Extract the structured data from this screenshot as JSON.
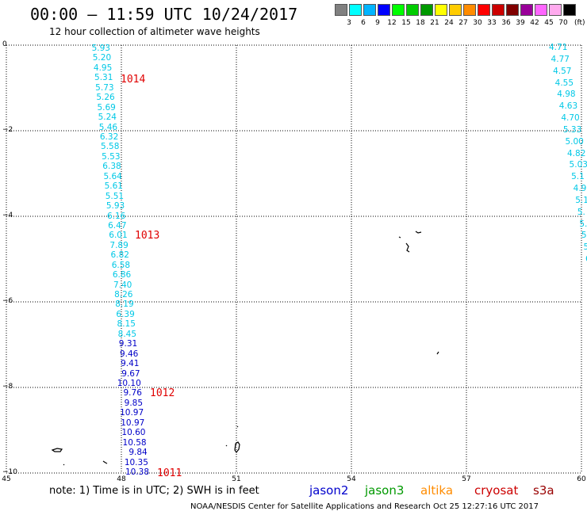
{
  "header": {
    "title": "00:00 – 11:59 UTC 10/24/2017",
    "subtitle": "12 hour collection of altimeter wave heights"
  },
  "legend": {
    "unit": "(ft)",
    "items": [
      {
        "label": "3",
        "color": "#808080"
      },
      {
        "label": "6",
        "color": "#00ffff"
      },
      {
        "label": "9",
        "color": "#00b4ff"
      },
      {
        "label": "12",
        "color": "#0000ff"
      },
      {
        "label": "15",
        "color": "#00ff00"
      },
      {
        "label": "18",
        "color": "#00cc00"
      },
      {
        "label": "21",
        "color": "#009900"
      },
      {
        "label": "24",
        "color": "#ffff00"
      },
      {
        "label": "27",
        "color": "#ffcc00"
      },
      {
        "label": "30",
        "color": "#ff8c00"
      },
      {
        "label": "33",
        "color": "#ff0000"
      },
      {
        "label": "36",
        "color": "#cc0000"
      },
      {
        "label": "39",
        "color": "#800000"
      },
      {
        "label": "42",
        "color": "#990099"
      },
      {
        "label": "45",
        "color": "#ff66ff"
      },
      {
        "label": "70",
        "color": "#ffaaee"
      },
      {
        "label": "",
        "color": "#000000"
      }
    ]
  },
  "axes": {
    "y_ticks": [
      "0",
      "−2",
      "−4",
      "−6",
      "−8",
      "−10"
    ],
    "x_ticks": [
      "45",
      "48",
      "51",
      "54",
      "57",
      "60"
    ]
  },
  "track_west": {
    "values": [
      {
        "v": "5.93",
        "c": "#00c8e6"
      },
      {
        "v": "5.20",
        "c": "#00c8e6"
      },
      {
        "v": "4.95",
        "c": "#00c8e6"
      },
      {
        "v": "5.31",
        "c": "#00c8e6"
      },
      {
        "v": "5.73",
        "c": "#00c8e6"
      },
      {
        "v": "5.26",
        "c": "#00c8e6"
      },
      {
        "v": "5.69",
        "c": "#00c8e6"
      },
      {
        "v": "5.24",
        "c": "#00c8e6"
      },
      {
        "v": "5.46",
        "c": "#00c8e6"
      },
      {
        "v": "6.32",
        "c": "#00c8e6"
      },
      {
        "v": "5.58",
        "c": "#00c8e6"
      },
      {
        "v": "5.53",
        "c": "#00c8e6"
      },
      {
        "v": "6.38",
        "c": "#00c8e6"
      },
      {
        "v": "5.64",
        "c": "#00c8e6"
      },
      {
        "v": "5.61",
        "c": "#00c8e6"
      },
      {
        "v": "5.51",
        "c": "#00c8e6"
      },
      {
        "v": "5.93",
        "c": "#00c8e6"
      },
      {
        "v": "6.16",
        "c": "#00c8e6"
      },
      {
        "v": "6.47",
        "c": "#00c8e6"
      },
      {
        "v": "6.01",
        "c": "#00c8e6"
      },
      {
        "v": "7.89",
        "c": "#00c8e6"
      },
      {
        "v": "6.82",
        "c": "#00c8e6"
      },
      {
        "v": "6.58",
        "c": "#00c8e6"
      },
      {
        "v": "6.86",
        "c": "#00c8e6"
      },
      {
        "v": "7.40",
        "c": "#00c8e6"
      },
      {
        "v": "8.26",
        "c": "#00c8e6"
      },
      {
        "v": "8.19",
        "c": "#00c8e6"
      },
      {
        "v": "6.39",
        "c": "#00c8e6"
      },
      {
        "v": "8.15",
        "c": "#00c8e6"
      },
      {
        "v": "8.45",
        "c": "#00c8e6"
      },
      {
        "v": "9.31",
        "c": "#0000c8"
      },
      {
        "v": "9.46",
        "c": "#0000c8"
      },
      {
        "v": "9.41",
        "c": "#0000c8"
      },
      {
        "v": "9.67",
        "c": "#0000c8"
      },
      {
        "v": "10.10",
        "c": "#0000c8"
      },
      {
        "v": "9.76",
        "c": "#0000c8"
      },
      {
        "v": "9.85",
        "c": "#0000c8"
      },
      {
        "v": "10.97",
        "c": "#0000c8"
      },
      {
        "v": "10.97",
        "c": "#0000c8"
      },
      {
        "v": "10.60",
        "c": "#0000c8"
      },
      {
        "v": "10.58",
        "c": "#0000c8"
      },
      {
        "v": "9.84",
        "c": "#0000c8"
      },
      {
        "v": "10.35",
        "c": "#0000c8"
      },
      {
        "v": "10.38",
        "c": "#0000c8"
      }
    ]
  },
  "track_east": {
    "values": [
      "4.71",
      "4.77",
      "4.57",
      "4.55",
      "4.98",
      "4.63",
      "4.70",
      "5.33",
      "5.00",
      "4.82",
      "5.03",
      "5.1",
      "4.9",
      "5.1",
      "5.",
      "5.",
      "5",
      "5",
      "6"
    ],
    "color": "#00c8e6"
  },
  "pressure_labels": [
    "1014",
    "1013",
    "1012",
    "1011"
  ],
  "note": "note:  1) Time is in UTC;  2) SWH is in feet",
  "satellites": [
    {
      "name": "jason2",
      "color": "#0000cc"
    },
    {
      "name": "jason3",
      "color": "#009900"
    },
    {
      "name": "altika",
      "color": "#ff8c00"
    },
    {
      "name": "cryosat",
      "color": "#cc0000"
    },
    {
      "name": "s3a",
      "color": "#990000"
    }
  ],
  "footer": "NOAA/NESDIS Center for Satellite Applications and Research     Oct 25 12:27:16 UTC 2017"
}
